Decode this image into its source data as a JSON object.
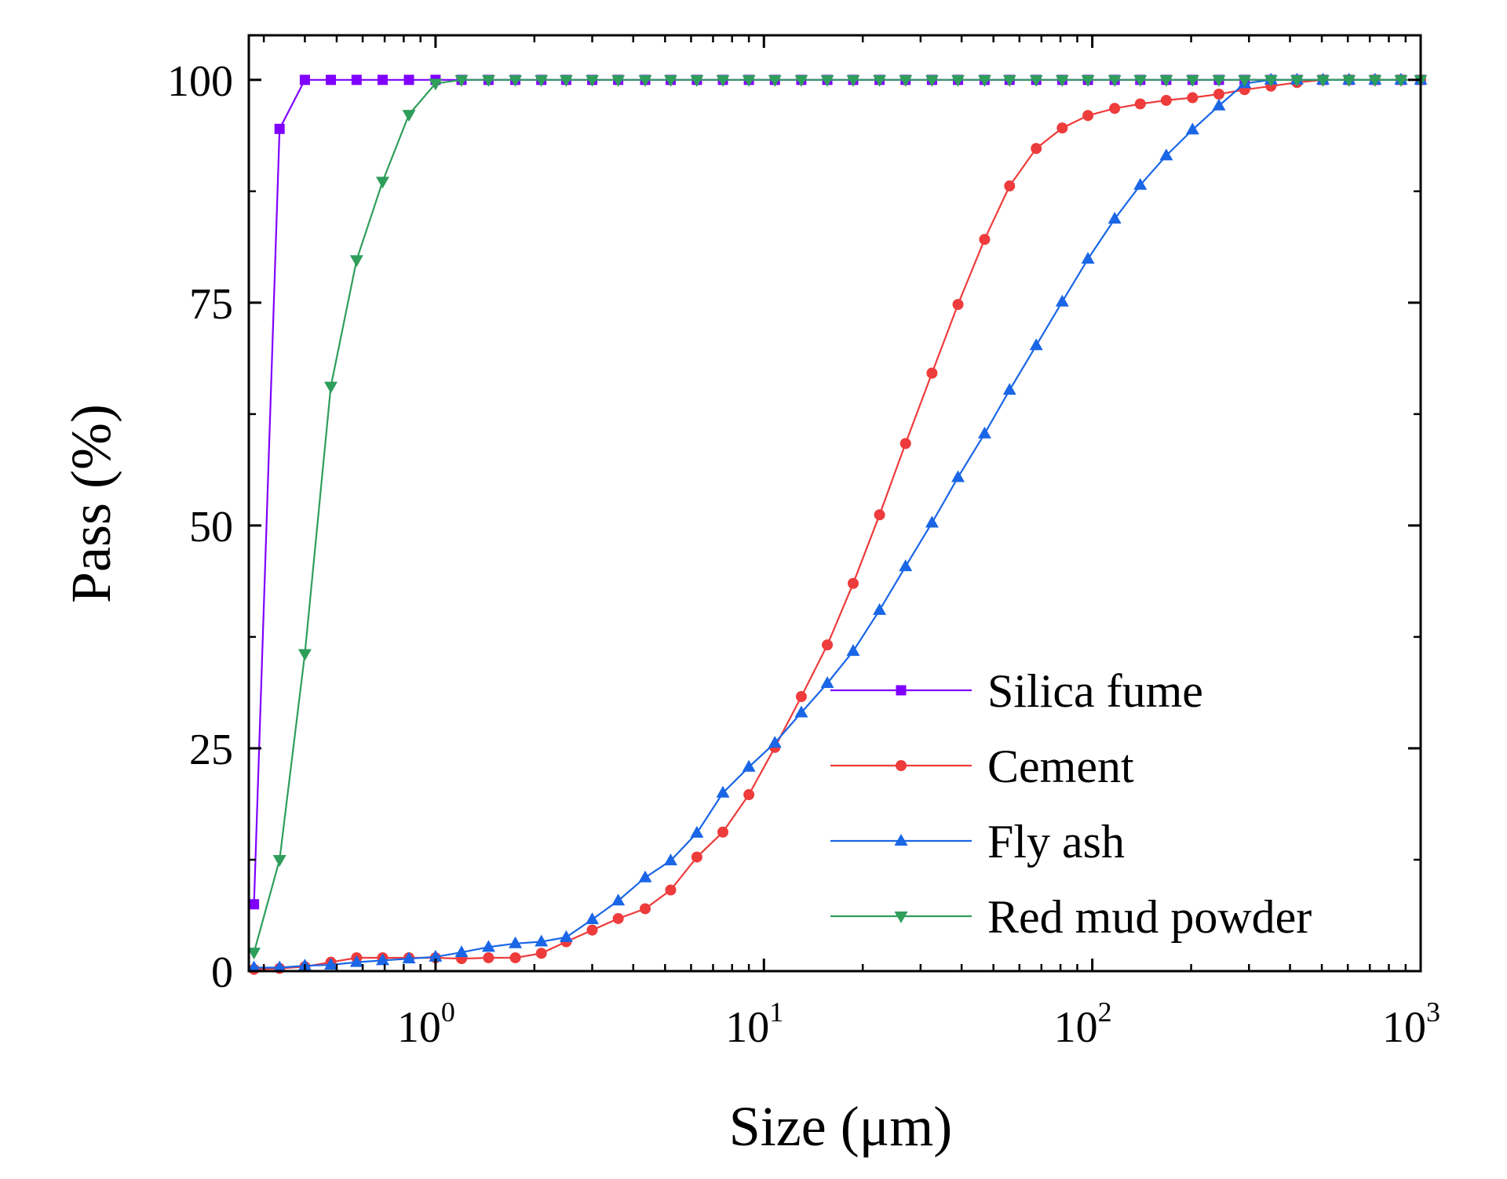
{
  "chart_data": {
    "type": "line",
    "xlabel": "Size (μm)",
    "ylabel": "Pass (%)",
    "xscale": "log",
    "xlim": [
      0.27,
      1000
    ],
    "ylim": [
      0,
      105
    ],
    "x_ticks": [
      {
        "value": 1,
        "base": "10",
        "exp": "0"
      },
      {
        "value": 10,
        "base": "10",
        "exp": "1"
      },
      {
        "value": 100,
        "base": "10",
        "exp": "2"
      },
      {
        "value": 1000,
        "base": "10",
        "exp": "3"
      }
    ],
    "y_ticks": [
      {
        "value": 0,
        "label": "0"
      },
      {
        "value": 25,
        "label": "25"
      },
      {
        "value": 50,
        "label": "50"
      },
      {
        "value": 75,
        "label": "75"
      },
      {
        "value": 100,
        "label": "100"
      }
    ],
    "y_minor_ticks": [
      12.5,
      37.5,
      62.5,
      87.5
    ],
    "legend_position": "bottom-right",
    "series": [
      {
        "name": "Silica fume",
        "color": "#7F00FF",
        "marker": "square",
        "x": [
          0.28,
          0.335,
          0.4,
          0.48,
          0.575,
          0.69,
          0.83,
          1.0,
          1.2,
          1.45,
          1.75,
          2.1,
          2.5,
          3.0,
          3.6,
          4.35,
          5.2,
          6.25,
          7.5,
          9.0,
          10.8,
          13.0,
          15.6,
          18.7,
          22.5,
          27.0,
          32.5,
          39.0,
          47.0,
          56.0,
          67.5,
          81.0,
          97.0,
          117.0,
          140.0,
          168.0,
          202.0,
          243.0,
          291.0,
          350.0,
          420.0,
          504.0,
          605.0,
          726.0,
          871.0,
          1000.0
        ],
        "y": [
          7.5,
          94.5,
          100,
          100,
          100,
          100,
          100,
          100,
          100,
          100,
          100,
          100,
          100,
          100,
          100,
          100,
          100,
          100,
          100,
          100,
          100,
          100,
          100,
          100,
          100,
          100,
          100,
          100,
          100,
          100,
          100,
          100,
          100,
          100,
          100,
          100,
          100,
          100,
          100,
          100,
          100,
          100,
          100,
          100,
          100,
          100
        ]
      },
      {
        "name": "Cement",
        "color": "#EE3B3B",
        "marker": "circle",
        "x": [
          0.28,
          0.335,
          0.4,
          0.48,
          0.575,
          0.69,
          0.83,
          1.0,
          1.2,
          1.45,
          1.75,
          2.1,
          2.5,
          3.0,
          3.6,
          4.35,
          5.2,
          6.25,
          7.5,
          9.0,
          10.8,
          13.0,
          15.6,
          18.7,
          22.5,
          27.0,
          32.5,
          39.0,
          47.0,
          56.0,
          67.5,
          81.0,
          97.0,
          117.0,
          140.0,
          168.0,
          202.0,
          243.0,
          291.0,
          350.0,
          420.0,
          504.0,
          605.0,
          726.0,
          871.0,
          1000.0
        ],
        "y": [
          0.2,
          0.3,
          0.5,
          1.0,
          1.5,
          1.5,
          1.5,
          1.5,
          1.4,
          1.5,
          1.5,
          2.0,
          3.3,
          4.6,
          5.9,
          7.0,
          9.1,
          12.8,
          15.6,
          19.8,
          25.1,
          30.8,
          36.6,
          43.5,
          51.2,
          59.2,
          67.1,
          74.8,
          82.1,
          88.1,
          92.3,
          94.6,
          96.0,
          96.8,
          97.3,
          97.7,
          98.0,
          98.4,
          98.9,
          99.3,
          99.7,
          100,
          100,
          100,
          100,
          100
        ]
      },
      {
        "name": "Fly ash",
        "color": "#1A66E6",
        "marker": "triangle-up",
        "x": [
          0.28,
          0.335,
          0.4,
          0.48,
          0.575,
          0.69,
          0.83,
          1.0,
          1.2,
          1.45,
          1.75,
          2.1,
          2.5,
          3.0,
          3.6,
          4.35,
          5.2,
          6.25,
          7.5,
          9.0,
          10.8,
          13.0,
          15.6,
          18.7,
          22.5,
          27.0,
          32.5,
          39.0,
          47.0,
          56.0,
          67.5,
          81.0,
          97.0,
          117.0,
          140.0,
          168.0,
          202.0,
          243.0,
          291.0,
          350.0,
          420.0,
          504.0,
          605.0,
          726.0,
          871.0,
          1000.0
        ],
        "y": [
          0.4,
          0.4,
          0.6,
          0.7,
          1.0,
          1.2,
          1.4,
          1.6,
          2.1,
          2.7,
          3.1,
          3.3,
          3.8,
          5.8,
          7.9,
          10.5,
          12.4,
          15.5,
          20.0,
          22.9,
          25.6,
          29.0,
          32.3,
          35.9,
          40.5,
          45.4,
          50.3,
          55.4,
          60.3,
          65.2,
          70.2,
          75.1,
          79.9,
          84.4,
          88.2,
          91.5,
          94.4,
          97.1,
          99.6,
          100,
          100,
          100,
          100,
          100,
          100,
          100
        ]
      },
      {
        "name": "Red mud powder",
        "color": "#2E9E5B",
        "marker": "triangle-down",
        "x": [
          0.28,
          0.335,
          0.4,
          0.48,
          0.575,
          0.69,
          0.83,
          1.0,
          1.2,
          1.45,
          1.75,
          2.1,
          2.5,
          3.0,
          3.6,
          4.35,
          5.2,
          6.25,
          7.5,
          9.0,
          10.8,
          13.0,
          15.6,
          18.7,
          22.5,
          27.0,
          32.5,
          39.0,
          47.0,
          56.0,
          67.5,
          81.0,
          97.0,
          117.0,
          140.0,
          168.0,
          202.0,
          243.0,
          291.0,
          350.0,
          420.0,
          504.0,
          605.0,
          726.0,
          871.0,
          1000.0
        ],
        "y": [
          2.1,
          12.5,
          35.6,
          65.6,
          79.8,
          88.6,
          96.1,
          99.6,
          100,
          100,
          100,
          100,
          100,
          100,
          100,
          100,
          100,
          100,
          100,
          100,
          100,
          100,
          100,
          100,
          100,
          100,
          100,
          100,
          100,
          100,
          100,
          100,
          100,
          100,
          100,
          100,
          100,
          100,
          100,
          100,
          100,
          100,
          100,
          100,
          100,
          100
        ]
      }
    ]
  }
}
